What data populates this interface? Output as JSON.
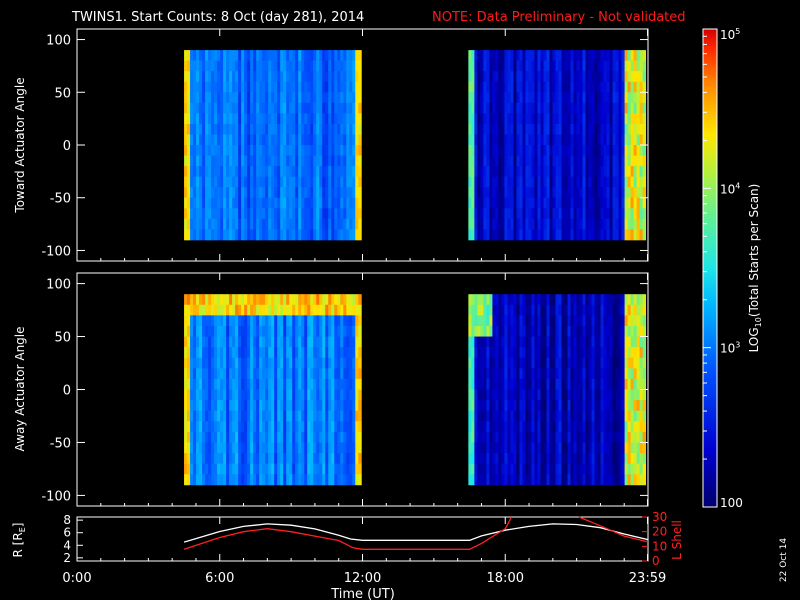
{
  "header": {
    "title": "TWINS1. Start Counts:  8 Oct (day 281), 2014",
    "note": "NOTE: Data Preliminary - Not validated"
  },
  "colors": {
    "background": "#000000",
    "note": "#ff1a1a",
    "axes": "#ffffff",
    "r_line": "#ffffff",
    "l_shell_line": "#ff2020"
  },
  "side_stamp": "22 Oct 14",
  "chart_data": [
    {
      "type": "heatmap",
      "name": "toward",
      "ylabel": "Toward Actuator Angle",
      "ylim": [
        -110,
        110
      ],
      "yticks": [
        100,
        50,
        0,
        -50,
        -100
      ],
      "xlim": [
        0,
        24
      ],
      "angle_range": [
        -90,
        90
      ],
      "data_intervals": [
        {
          "start": 4.5,
          "end": 11.95,
          "level": 2.95,
          "description": "green-cyan counts, yellow edges"
        },
        {
          "start": 16.45,
          "end": 23.9,
          "level": 2.35,
          "description": "blue counts, orange-red near 23:30"
        }
      ]
    },
    {
      "type": "heatmap",
      "name": "away",
      "ylabel": "Away Actuator Angle",
      "ylim": [
        -110,
        110
      ],
      "yticks": [
        100,
        50,
        0,
        -50,
        -100
      ],
      "xlim": [
        0,
        24
      ],
      "angle_range": [
        -90,
        90
      ],
      "data_intervals": [
        {
          "start": 4.5,
          "end": 11.95,
          "level": 3.0,
          "description": "cyan-green counts, red-orange band near +80"
        },
        {
          "start": 16.45,
          "end": 23.9,
          "level": 2.3,
          "description": "blue counts, yellow-red edges"
        }
      ]
    },
    {
      "type": "line",
      "name": "orbit",
      "ylabel_left": "R [R_E]",
      "ylabel_left_parts": {
        "base": "R [R",
        "sub": "E",
        "close": "]"
      },
      "ylabel_right": "L Shell",
      "ylim_left": [
        1.5,
        8.5
      ],
      "yticks_left": [
        8,
        6,
        4,
        2
      ],
      "ylim_right": [
        0,
        30
      ],
      "yticks_right": [
        30,
        20,
        10,
        0
      ],
      "xlabel": "Time (UT)",
      "xticks": [
        {
          "value": 0,
          "label": "0:00"
        },
        {
          "value": 6,
          "label": "6:00"
        },
        {
          "value": 12,
          "label": "12:00"
        },
        {
          "value": 18,
          "label": "18:00"
        },
        {
          "value": 23.98,
          "label": "23:59"
        }
      ],
      "series": [
        {
          "name": "R [R_E]",
          "axis": "left",
          "x": [
            4.5,
            6,
            7,
            8,
            9,
            10,
            11,
            11.5,
            12,
            14,
            16.5,
            17,
            18,
            19,
            20,
            21,
            22,
            23,
            24
          ],
          "y": [
            4.5,
            6.2,
            7.0,
            7.4,
            7.2,
            6.6,
            5.6,
            5.0,
            4.8,
            4.8,
            4.8,
            5.5,
            6.4,
            7.0,
            7.4,
            7.3,
            6.8,
            5.8,
            4.9
          ]
        },
        {
          "name": "L Shell",
          "axis": "right",
          "x": [
            4.5,
            6,
            7,
            8,
            9,
            10,
            11,
            11.6,
            12,
            14,
            16.5,
            17,
            18,
            18.2,
            18.25,
            21,
            21.1,
            22,
            23,
            24
          ],
          "y": [
            8,
            16,
            20,
            22,
            20,
            17,
            14,
            9,
            8,
            8,
            8,
            12,
            22,
            28,
            30,
            null,
            30,
            24,
            17,
            13
          ]
        }
      ]
    },
    {
      "type": "heatmap",
      "name": "colorbar",
      "title_parts": {
        "pre": "LOG",
        "sub": "10",
        "post": "(Total Starts per Scan)"
      },
      "range": [
        2,
        5
      ],
      "ticks": [
        {
          "value": 5,
          "label": "10^5",
          "base": "10",
          "exp": "5"
        },
        {
          "value": 4,
          "label": "10^4",
          "base": "10",
          "exp": "4"
        },
        {
          "value": 3,
          "label": "10^3",
          "base": "10",
          "exp": "3"
        },
        {
          "value": 2,
          "label": "100",
          "base": "100",
          "exp": ""
        }
      ]
    }
  ]
}
